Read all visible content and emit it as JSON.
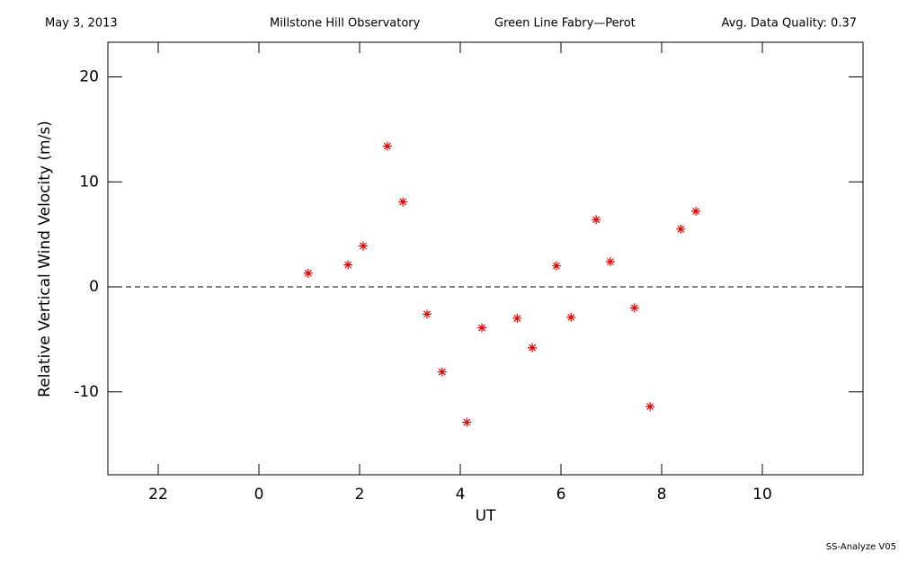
{
  "chart_data": {
    "type": "scatter",
    "header_left": "May 3, 2013",
    "header_center_left": "Millstone Hill Observatory",
    "header_center_right": "Green Line Fabry—Perot",
    "header_right": "Avg. Data Quality: 0.37",
    "footer": "SS-Analyze V05",
    "xlabel": "UT",
    "ylabel": "Relative Vertical Wind Velocity (m/s)",
    "xlim": [
      -3,
      12
    ],
    "ylim": [
      -17.9,
      23.3
    ],
    "xticks": [
      {
        "value": -2,
        "label": "22"
      },
      0,
      2,
      4,
      6,
      8,
      10
    ],
    "yticks": [
      -10,
      0,
      10,
      20
    ],
    "reference_line": 0,
    "series": [
      {
        "color": "#e00000",
        "x": [
          0.98,
          1.77,
          2.07,
          2.55,
          2.86,
          3.34,
          3.64,
          4.13,
          4.43,
          5.13,
          5.43,
          5.91,
          6.2,
          6.7,
          6.98,
          7.46,
          7.77,
          8.38,
          8.68
        ],
        "values": [
          1.3,
          2.1,
          3.9,
          13.4,
          8.1,
          -2.6,
          -8.1,
          -12.9,
          -3.9,
          -3.0,
          -5.8,
          2.0,
          -2.9,
          6.4,
          2.4,
          -2.0,
          -11.4,
          5.5,
          7.2
        ]
      }
    ]
  }
}
